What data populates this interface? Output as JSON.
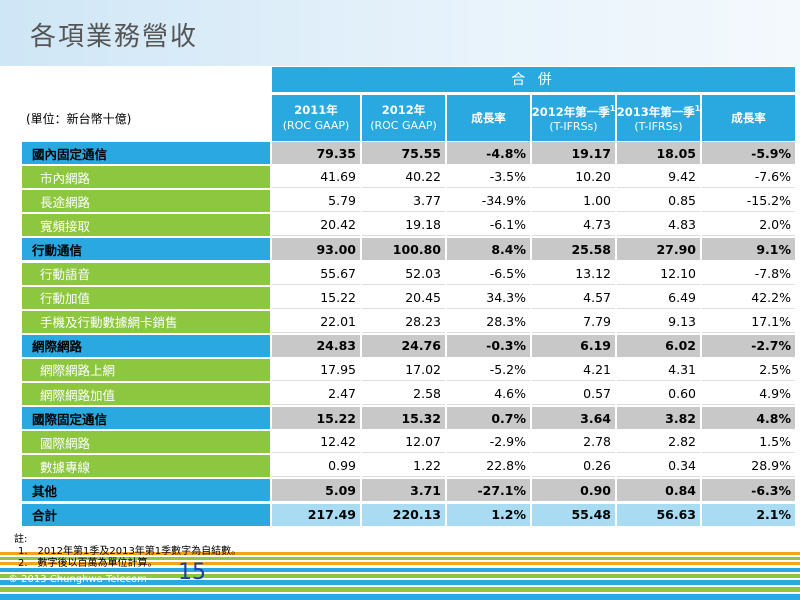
{
  "header": {
    "title": "各項業務營收",
    "unit": "(單位：新台幣十億)"
  },
  "table": {
    "group": "合 併",
    "columns": [
      {
        "label": "2011年",
        "basis": "(ROC GAAP)"
      },
      {
        "label": "2012年",
        "basis": "(ROC GAAP)"
      },
      {
        "label": "成長率"
      },
      {
        "label": "2012年第一季",
        "ref": "1",
        "basis": "(T-IFRSs)"
      },
      {
        "label": "2013年第一季",
        "ref": "1",
        "basis": "(T-IFRSs)"
      },
      {
        "label": "成長率"
      }
    ],
    "sections": [
      {
        "label": "國內固定通信",
        "values": [
          "79.35",
          "75.55",
          "-4.8%",
          "19.17",
          "18.05",
          "-5.9%"
        ],
        "items": [
          {
            "label": "市內網路",
            "values": [
              "41.69",
              "40.22",
              "-3.5%",
              "10.20",
              "9.42",
              "-7.6%"
            ]
          },
          {
            "label": "長途網路",
            "values": [
              "5.79",
              "3.77",
              "-34.9%",
              "1.00",
              "0.85",
              "-15.2%"
            ]
          },
          {
            "label": "寬頻接取",
            "values": [
              "20.42",
              "19.18",
              "-6.1%",
              "4.73",
              "4.83",
              "2.0%"
            ]
          }
        ]
      },
      {
        "label": "行動通信",
        "values": [
          "93.00",
          "100.80",
          "8.4%",
          "25.58",
          "27.90",
          "9.1%"
        ],
        "items": [
          {
            "label": "行動語音",
            "values": [
              "55.67",
              "52.03",
              "-6.5%",
              "13.12",
              "12.10",
              "-7.8%"
            ]
          },
          {
            "label": "行動加值",
            "values": [
              "15.22",
              "20.45",
              "34.3%",
              "4.57",
              "6.49",
              "42.2%"
            ]
          },
          {
            "label": "手機及行動數據網卡銷售",
            "values": [
              "22.01",
              "28.23",
              "28.3%",
              "7.79",
              "9.13",
              "17.1%"
            ]
          }
        ]
      },
      {
        "label": "網際網路",
        "values": [
          "24.83",
          "24.76",
          "-0.3%",
          "6.19",
          "6.02",
          "-2.7%"
        ],
        "items": [
          {
            "label": "網際網路上網",
            "values": [
              "17.95",
              "17.02",
              "-5.2%",
              "4.21",
              "4.31",
              "2.5%"
            ]
          },
          {
            "label": "網際網路加值",
            "values": [
              "2.47",
              "2.58",
              "4.6%",
              "0.57",
              "0.60",
              "4.9%"
            ]
          }
        ]
      },
      {
        "label": "國際固定通信",
        "values": [
          "15.22",
          "15.32",
          "0.7%",
          "3.64",
          "3.82",
          "4.8%"
        ],
        "items": [
          {
            "label": "國際網路",
            "values": [
              "12.42",
              "12.07",
              "-2.9%",
              "2.78",
              "2.82",
              "1.5%"
            ]
          },
          {
            "label": "數據專線",
            "values": [
              "0.99",
              "1.22",
              "22.8%",
              "0.26",
              "0.34",
              "28.9%"
            ]
          }
        ]
      },
      {
        "label": "其他",
        "values": [
          "5.09",
          "3.71",
          "-27.1%",
          "0.90",
          "0.84",
          "-6.3%"
        ],
        "items": []
      }
    ],
    "total": {
      "label": "合計",
      "values": [
        "217.49",
        "220.13",
        "1.2%",
        "55.48",
        "56.63",
        "2.1%"
      ]
    }
  },
  "notes": {
    "heading": "註:",
    "items": [
      "1.　2012年第1季及2013年第1季數字為自結數。",
      "2.　數字後以百萬為單位計算。"
    ]
  },
  "footer": {
    "copyright": "© 2013 Chunghwa Telecom",
    "page": "15"
  }
}
